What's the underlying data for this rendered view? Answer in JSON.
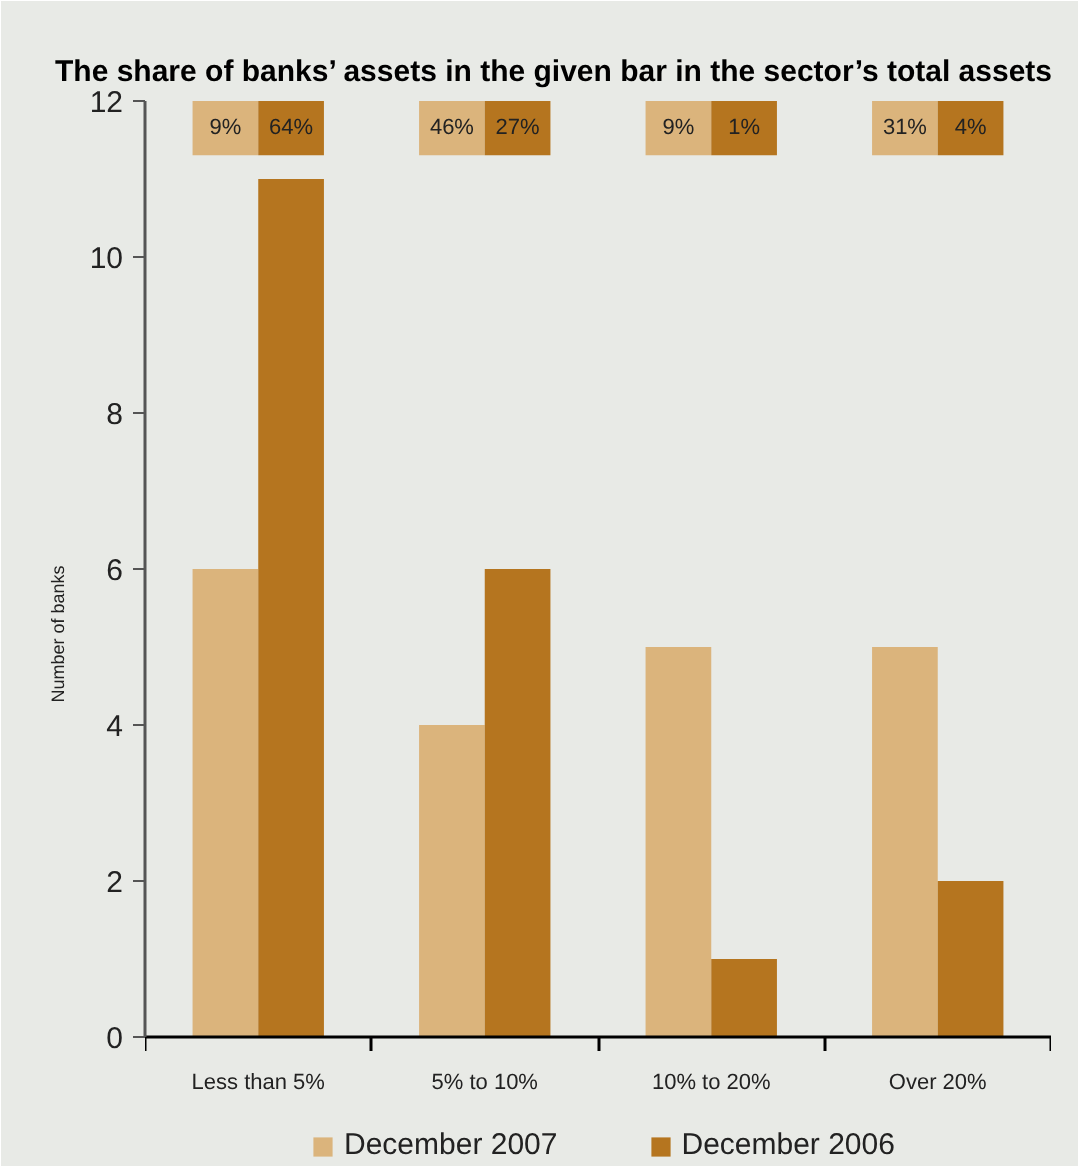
{
  "chart_data": {
    "type": "bar",
    "title": "The share of banks’ assets in the given bar in the sector’s total assets",
    "ylabel": "Number of banks",
    "categories": [
      "Less than 5%",
      "5% to 10%",
      "10% to 20%",
      "Over 20%"
    ],
    "series": [
      {
        "name": "December 2007",
        "color": "#dbb47c",
        "values": [
          6,
          4,
          5,
          5
        ]
      },
      {
        "name": "December 2006",
        "color": "#b5751f",
        "values": [
          11,
          6,
          1,
          2
        ]
      }
    ],
    "ylim": [
      0,
      12
    ],
    "yticks": [
      0,
      2,
      4,
      6,
      8,
      10,
      12
    ],
    "legend": "bottom",
    "annotations": [
      "9%",
      "64%",
      "46%",
      "27%",
      "9%",
      "1%",
      "31%",
      "4%"
    ]
  }
}
